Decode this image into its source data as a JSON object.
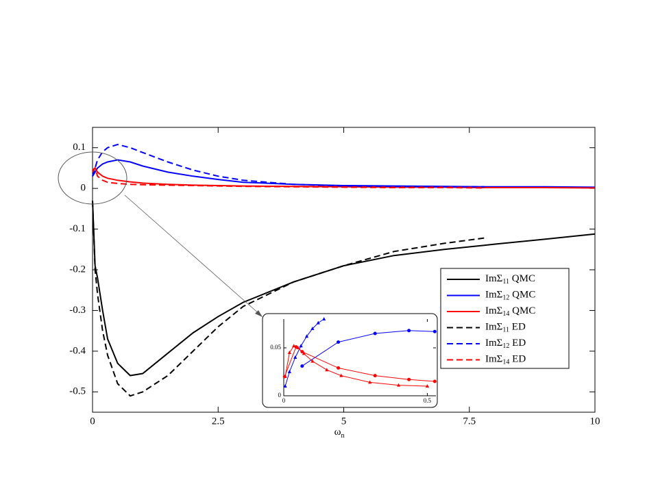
{
  "chart_data": [
    {
      "type": "line",
      "x_label": "ω",
      "x_label_sub": "n",
      "x": [
        0,
        0.05,
        0.1,
        0.2,
        0.3,
        0.5,
        0.75,
        1,
        1.5,
        2,
        2.5,
        3,
        4,
        5,
        6,
        7,
        7.8,
        8,
        9,
        10
      ],
      "xlim": [
        0,
        10
      ],
      "xticks": [
        0,
        2.5,
        5,
        7.5,
        10
      ],
      "ylim": [
        -0.55,
        0.15
      ],
      "yticks": [
        0.1,
        0,
        -0.1,
        -0.2,
        -0.3,
        -0.4,
        -0.5
      ],
      "series": [
        {
          "name": "ImΣ11 QMC",
          "color": "#000000",
          "line_style": "solid",
          "values": [
            -0.03,
            -0.19,
            -0.22,
            -0.3,
            -0.37,
            -0.43,
            -0.46,
            -0.455,
            -0.405,
            -0.355,
            -0.315,
            -0.28,
            -0.23,
            -0.19,
            -0.165,
            -0.15,
            -0.14,
            -0.137,
            -0.125,
            -0.112
          ]
        },
        {
          "name": "ImΣ12 QMC",
          "color": "#0000ff",
          "line_style": "solid",
          "values": [
            0.03,
            0.04,
            0.05,
            0.06,
            0.065,
            0.07,
            0.065,
            0.055,
            0.04,
            0.03,
            0.022,
            0.015,
            0.01,
            0.007,
            0.006,
            0.005,
            0.004,
            0.004,
            0.004,
            0.003
          ]
        },
        {
          "name": "ImΣ14 QMC",
          "color": "#ff0000",
          "line_style": "solid",
          "values": [
            0.045,
            0.05,
            0.04,
            0.03,
            0.025,
            0.02,
            0.016,
            0.013,
            0.01,
            0.008,
            0.007,
            0.006,
            0.005,
            0.004,
            0.003,
            0.003,
            0.002,
            0.002,
            0.002,
            0.001
          ]
        },
        {
          "name": "ImΣ11 ED",
          "color": "#000000",
          "line_style": "dashed",
          "values": [
            -0.03,
            -0.2,
            -0.26,
            -0.35,
            -0.41,
            -0.48,
            -0.51,
            -0.5,
            -0.46,
            -0.4,
            -0.34,
            -0.29,
            -0.23,
            -0.19,
            -0.155,
            -0.135,
            -0.122,
            null,
            null,
            null
          ]
        },
        {
          "name": "ImΣ12 ED",
          "color": "#0000ff",
          "line_style": "dashed",
          "values": [
            0.03,
            0.05,
            0.07,
            0.09,
            0.1,
            0.108,
            0.1,
            0.088,
            0.065,
            0.045,
            0.03,
            0.02,
            0.01,
            0.006,
            0.005,
            0.004,
            0.004,
            null,
            null,
            null
          ]
        },
        {
          "name": "ImΣ14 ED",
          "color": "#ff0000",
          "line_style": "dashed",
          "values": [
            0.04,
            0.05,
            0.03,
            0.02,
            0.015,
            0.012,
            0.01,
            0.009,
            0.008,
            0.007,
            0.006,
            0.005,
            0.004,
            0.003,
            0.002,
            0.002,
            0.001,
            null,
            null,
            null
          ]
        }
      ]
    },
    {
      "type": "line",
      "xlim": [
        0,
        0.53
      ],
      "xticks": [
        0,
        0.5
      ],
      "ylim": [
        0,
        0.08
      ],
      "yticks": [
        0,
        0.05
      ],
      "series": [
        {
          "color": "#0000ff",
          "marker": "circle",
          "x": [
            0.064,
            0.19,
            0.318,
            0.436,
            0.526
          ],
          "values": [
            0.031,
            0.056,
            0.065,
            0.068,
            0.067
          ]
        },
        {
          "color": "#0000ff",
          "marker": "triangle",
          "x": [
            0.005,
            0.02,
            0.04,
            0.06,
            0.08,
            0.1,
            0.12,
            0.14
          ],
          "values": [
            0.01,
            0.025,
            0.04,
            0.052,
            0.062,
            0.07,
            0.076,
            0.08
          ]
        },
        {
          "color": "#ff0000",
          "marker": "circle",
          "x": [
            0.003,
            0.043,
            0.064,
            0.19,
            0.318,
            0.436,
            0.526
          ],
          "values": [
            0.02,
            0.051,
            0.046,
            0.029,
            0.021,
            0.017,
            0.015
          ]
        },
        {
          "color": "#ff0000",
          "marker": "triangle",
          "x": [
            0.005,
            0.02,
            0.035,
            0.05,
            0.07,
            0.1,
            0.15,
            0.2,
            0.3,
            0.4,
            0.5
          ],
          "values": [
            0.02,
            0.045,
            0.052,
            0.05,
            0.044,
            0.036,
            0.027,
            0.021,
            0.014,
            0.011,
            0.01
          ]
        }
      ]
    }
  ]
}
